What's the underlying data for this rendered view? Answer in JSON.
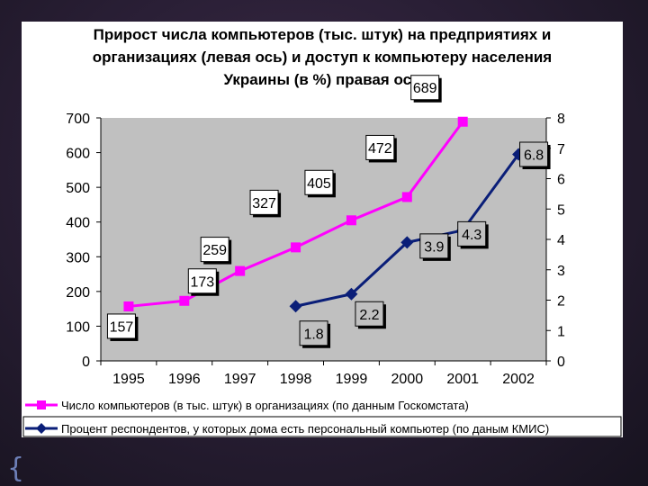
{
  "chart_data": {
    "type": "line",
    "title_lines": [
      "Прирост числа компьютеров (тыс. штук) на предприятиях и",
      "организациях (левая ось) и доступ к компьютеру населения",
      "Украины (в %) правая ось"
    ],
    "categories": [
      "1995",
      "1996",
      "1997",
      "1998",
      "1999",
      "2000",
      "2001",
      "2002"
    ],
    "y_left": {
      "ylim": [
        0,
        700
      ],
      "ticks": [
        "0",
        "100",
        "200",
        "300",
        "400",
        "500",
        "600",
        "700"
      ]
    },
    "y_right": {
      "ylim": [
        0,
        8
      ],
      "ticks": [
        "0",
        "1",
        "2",
        "3",
        "4",
        "5",
        "6",
        "7",
        "8"
      ]
    },
    "grid": false,
    "legend_position": "bottom",
    "series": [
      {
        "name": "Число компьютеров (в тыс. штук) в организациях (по данным Госкомстата)",
        "axis": "left",
        "color": "#ff00ff",
        "marker": "square",
        "values": [
          157,
          173,
          259,
          327,
          405,
          472,
          689,
          null
        ],
        "labels": [
          "157",
          "173",
          "259",
          "327",
          "405",
          "472",
          "689",
          null
        ]
      },
      {
        "name": "Процент респондентов, у которых дома есть персональный компьютер (по даным КМИС)",
        "axis": "right",
        "color": "#0a1e78",
        "marker": "diamond",
        "values": [
          null,
          null,
          null,
          1.8,
          2.2,
          3.9,
          4.3,
          6.8
        ],
        "labels": [
          null,
          null,
          null,
          "1.8",
          "2.2",
          "3.9",
          "4.3",
          "6.8"
        ]
      }
    ]
  }
}
